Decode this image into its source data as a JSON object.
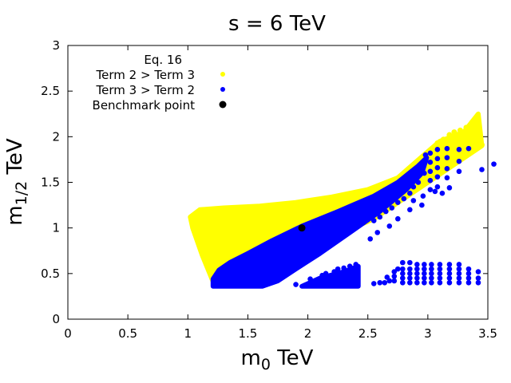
{
  "chart_data": {
    "type": "scatter",
    "title": "s = 6 TeV",
    "xlabel": {
      "main": "m",
      "sub": "0",
      "unit": " TeV"
    },
    "ylabel": {
      "main": "m",
      "sub": "1/2",
      "unit": " TeV"
    },
    "xlim": [
      0,
      3.5
    ],
    "ylim": [
      0,
      3
    ],
    "x_ticks": [
      "0",
      "0.5",
      "1",
      "1.5",
      "2",
      "2.5",
      "3",
      "3.5"
    ],
    "x_tick_values": [
      0,
      0.5,
      1,
      1.5,
      2,
      2.5,
      3,
      3.5
    ],
    "y_ticks": [
      "0",
      "0.5",
      "1",
      "1.5",
      "2",
      "2.5",
      "3"
    ],
    "y_tick_values": [
      0,
      0.5,
      1,
      1.5,
      2,
      2.5,
      3
    ],
    "legend_title": "Eq. 16",
    "legend_position": "top-left",
    "series": [
      {
        "name": "Term 2 > Term 3",
        "color": "#ffff00",
        "region_polygon": [
          [
            1.02,
            1.12
          ],
          [
            1.1,
            1.2
          ],
          [
            1.3,
            1.22
          ],
          [
            1.6,
            1.24
          ],
          [
            1.9,
            1.28
          ],
          [
            2.2,
            1.34
          ],
          [
            2.5,
            1.42
          ],
          [
            2.75,
            1.55
          ],
          [
            2.95,
            1.78
          ],
          [
            3.1,
            1.95
          ],
          [
            3.3,
            2.05
          ],
          [
            3.42,
            2.25
          ],
          [
            3.45,
            1.9
          ],
          [
            3.0,
            1.5
          ],
          [
            2.55,
            1.1
          ],
          [
            2.2,
            0.9
          ],
          [
            1.85,
            0.72
          ],
          [
            1.55,
            0.55
          ],
          [
            1.4,
            0.42
          ],
          [
            1.22,
            0.38
          ],
          [
            1.12,
            0.7
          ],
          [
            1.04,
            1.0
          ]
        ],
        "edge_points": [
          [
            3.08,
            1.93
          ],
          [
            3.13,
            1.97
          ],
          [
            3.18,
            2.02
          ],
          [
            3.22,
            2.05
          ],
          [
            3.27,
            2.07
          ],
          [
            3.32,
            2.1
          ],
          [
            3.37,
            2.16
          ],
          [
            3.41,
            2.22
          ],
          [
            3.42,
            2.12
          ],
          [
            3.43,
            2.05
          ],
          [
            3.43,
            1.98
          ],
          [
            3.45,
            1.91
          ]
        ]
      },
      {
        "name": "Term 3 > Term 2",
        "color": "#0000ff",
        "region_polygon": [
          [
            1.21,
            0.36
          ],
          [
            1.21,
            0.44
          ],
          [
            1.26,
            0.54
          ],
          [
            1.35,
            0.62
          ],
          [
            1.5,
            0.72
          ],
          [
            1.7,
            0.86
          ],
          [
            1.95,
            1.02
          ],
          [
            2.25,
            1.18
          ],
          [
            2.55,
            1.35
          ],
          [
            2.75,
            1.5
          ],
          [
            2.92,
            1.68
          ],
          [
            2.99,
            1.77
          ],
          [
            2.95,
            1.6
          ],
          [
            2.82,
            1.42
          ],
          [
            2.6,
            1.18
          ],
          [
            2.35,
            0.95
          ],
          [
            2.1,
            0.72
          ],
          [
            1.9,
            0.55
          ],
          [
            1.75,
            0.42
          ],
          [
            1.62,
            0.36
          ]
        ],
        "island_polygon": [
          [
            1.95,
            0.36
          ],
          [
            2.1,
            0.45
          ],
          [
            2.3,
            0.52
          ],
          [
            2.42,
            0.58
          ],
          [
            2.42,
            0.36
          ]
        ],
        "points": [
          [
            2.85,
            1.55
          ],
          [
            2.9,
            1.62
          ],
          [
            2.95,
            1.7
          ],
          [
            2.98,
            1.8
          ],
          [
            2.92,
            1.5
          ],
          [
            2.88,
            1.45
          ],
          [
            2.97,
            1.6
          ],
          [
            2.85,
            1.38
          ],
          [
            2.8,
            1.32
          ],
          [
            2.75,
            1.28
          ],
          [
            2.7,
            1.22
          ],
          [
            2.65,
            1.18
          ],
          [
            2.6,
            1.12
          ],
          [
            2.55,
            1.08
          ],
          [
            3.02,
            1.82
          ],
          [
            3.02,
            1.72
          ],
          [
            3.02,
            1.62
          ],
          [
            3.02,
            1.52
          ],
          [
            3.02,
            1.42
          ],
          [
            3.08,
            1.86
          ],
          [
            3.08,
            1.76
          ],
          [
            3.08,
            1.66
          ],
          [
            3.08,
            1.56
          ],
          [
            3.08,
            1.45
          ],
          [
            3.16,
            1.87
          ],
          [
            3.16,
            1.77
          ],
          [
            3.16,
            1.65
          ],
          [
            3.16,
            1.55
          ],
          [
            3.26,
            1.86
          ],
          [
            3.26,
            1.73
          ],
          [
            3.26,
            1.62
          ],
          [
            3.34,
            1.87
          ],
          [
            3.45,
            1.64
          ],
          [
            3.55,
            1.7
          ],
          [
            2.88,
            1.3
          ],
          [
            2.96,
            1.35
          ],
          [
            3.06,
            1.4
          ],
          [
            3.18,
            1.44
          ],
          [
            3.12,
            1.38
          ],
          [
            2.95,
            1.25
          ],
          [
            2.85,
            1.2
          ],
          [
            2.75,
            1.1
          ],
          [
            2.68,
            1.02
          ],
          [
            2.58,
            0.95
          ],
          [
            2.52,
            0.88
          ],
          [
            2.02,
            0.44
          ],
          [
            2.12,
            0.48
          ],
          [
            2.22,
            0.52
          ],
          [
            2.3,
            0.56
          ],
          [
            2.4,
            0.6
          ],
          [
            2.35,
            0.58
          ],
          [
            2.25,
            0.55
          ],
          [
            2.15,
            0.5
          ],
          [
            2.4,
            0.52
          ],
          [
            2.4,
            0.46
          ],
          [
            2.4,
            0.4
          ],
          [
            2.33,
            0.4
          ],
          [
            2.28,
            0.45
          ],
          [
            2.2,
            0.42
          ],
          [
            2.1,
            0.38
          ],
          [
            2.0,
            0.38
          ],
          [
            1.9,
            0.38
          ],
          [
            2.55,
            0.39
          ],
          [
            2.6,
            0.4
          ],
          [
            2.64,
            0.4
          ],
          [
            2.68,
            0.42
          ],
          [
            2.66,
            0.46
          ],
          [
            2.72,
            0.42
          ],
          [
            2.72,
            0.47
          ],
          [
            2.72,
            0.52
          ],
          [
            2.75,
            0.55
          ],
          [
            2.79,
            0.4
          ],
          [
            2.79,
            0.45
          ],
          [
            2.79,
            0.5
          ],
          [
            2.79,
            0.55
          ],
          [
            2.79,
            0.62
          ],
          [
            2.85,
            0.4
          ],
          [
            2.85,
            0.45
          ],
          [
            2.85,
            0.5
          ],
          [
            2.85,
            0.55
          ],
          [
            2.85,
            0.62
          ],
          [
            2.91,
            0.4
          ],
          [
            2.91,
            0.45
          ],
          [
            2.91,
            0.5
          ],
          [
            2.91,
            0.55
          ],
          [
            2.91,
            0.6
          ],
          [
            2.97,
            0.4
          ],
          [
            2.97,
            0.45
          ],
          [
            2.97,
            0.5
          ],
          [
            2.97,
            0.55
          ],
          [
            2.97,
            0.6
          ],
          [
            3.03,
            0.4
          ],
          [
            3.03,
            0.45
          ],
          [
            3.03,
            0.5
          ],
          [
            3.03,
            0.55
          ],
          [
            3.03,
            0.6
          ],
          [
            3.1,
            0.4
          ],
          [
            3.1,
            0.45
          ],
          [
            3.1,
            0.5
          ],
          [
            3.1,
            0.55
          ],
          [
            3.1,
            0.6
          ],
          [
            3.18,
            0.4
          ],
          [
            3.18,
            0.45
          ],
          [
            3.18,
            0.5
          ],
          [
            3.18,
            0.55
          ],
          [
            3.18,
            0.6
          ],
          [
            3.26,
            0.4
          ],
          [
            3.26,
            0.45
          ],
          [
            3.26,
            0.5
          ],
          [
            3.26,
            0.55
          ],
          [
            3.26,
            0.6
          ],
          [
            3.34,
            0.4
          ],
          [
            3.34,
            0.45
          ],
          [
            3.34,
            0.5
          ],
          [
            3.34,
            0.55
          ],
          [
            3.42,
            0.4
          ],
          [
            3.42,
            0.45
          ],
          [
            3.42,
            0.52
          ]
        ]
      },
      {
        "name": "Benchmark point",
        "color": "#000000",
        "points": [
          [
            1.95,
            1.0
          ]
        ]
      }
    ]
  }
}
